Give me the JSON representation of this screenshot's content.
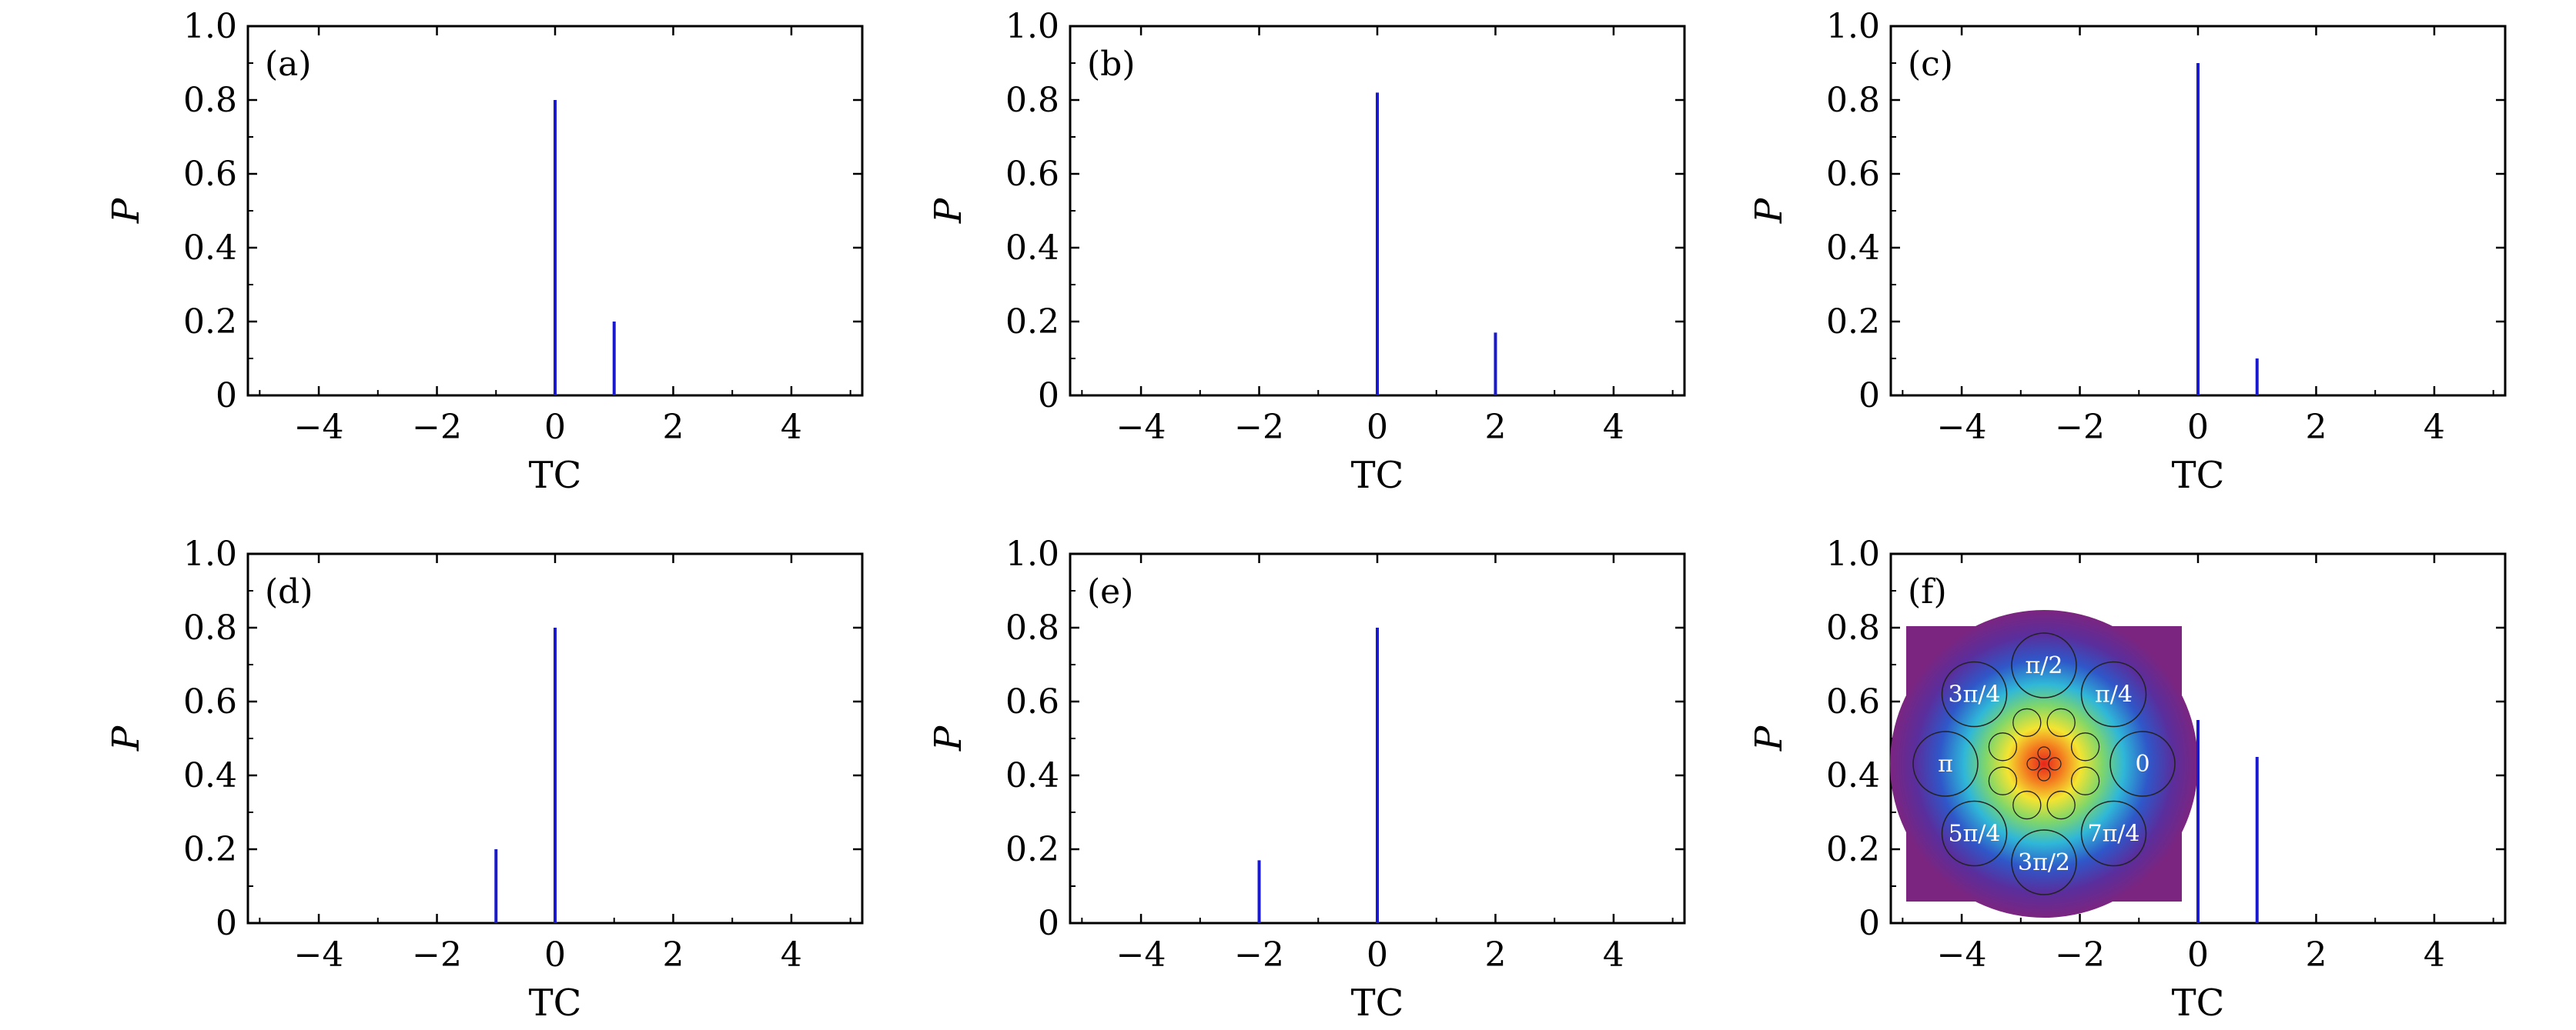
{
  "chart_data": [
    {
      "panel": "(a)",
      "type": "bar",
      "xlabel": "TC",
      "ylabel": "P",
      "xlim": [
        -5.2,
        5.2
      ],
      "ylim": [
        0,
        1.0
      ],
      "xticks": [
        -4,
        -2,
        0,
        2,
        4
      ],
      "xtick_labels": [
        "−4",
        "−2",
        "0",
        "2",
        "4"
      ],
      "yticks": [
        0,
        0.2,
        0.4,
        0.6,
        0.8,
        1.0
      ],
      "ytick_labels": [
        "0",
        "0.2",
        "0.4",
        "0.6",
        "0.8",
        "1.0"
      ],
      "x": [
        0,
        1
      ],
      "values": [
        0.8,
        0.2
      ],
      "color": "#1a1acc"
    },
    {
      "panel": "(b)",
      "type": "bar",
      "xlabel": "TC",
      "ylabel": "P",
      "xlim": [
        -5.2,
        5.2
      ],
      "ylim": [
        0,
        1.0
      ],
      "xticks": [
        -4,
        -2,
        0,
        2,
        4
      ],
      "xtick_labels": [
        "−4",
        "−2",
        "0",
        "2",
        "4"
      ],
      "yticks": [
        0,
        0.2,
        0.4,
        0.6,
        0.8,
        1.0
      ],
      "ytick_labels": [
        "0",
        "0.2",
        "0.4",
        "0.6",
        "0.8",
        "1.0"
      ],
      "x": [
        0,
        2
      ],
      "values": [
        0.82,
        0.17
      ],
      "color": "#1a1acc"
    },
    {
      "panel": "(c)",
      "type": "bar",
      "xlabel": "TC",
      "ylabel": "P",
      "xlim": [
        -5.2,
        5.2
      ],
      "ylim": [
        0,
        1.0
      ],
      "xticks": [
        -4,
        -2,
        0,
        2,
        4
      ],
      "xtick_labels": [
        "−4",
        "−2",
        "0",
        "2",
        "4"
      ],
      "yticks": [
        0,
        0.2,
        0.4,
        0.6,
        0.8,
        1.0
      ],
      "ytick_labels": [
        "0",
        "0.2",
        "0.4",
        "0.6",
        "0.8",
        "1.0"
      ],
      "x": [
        0,
        1
      ],
      "values": [
        0.9,
        0.1
      ],
      "color": "#1a1acc"
    },
    {
      "panel": "(d)",
      "type": "bar",
      "xlabel": "TC",
      "ylabel": "P",
      "xlim": [
        -5.2,
        5.2
      ],
      "ylim": [
        0,
        1.0
      ],
      "xticks": [
        -4,
        -2,
        0,
        2,
        4
      ],
      "xtick_labels": [
        "−4",
        "−2",
        "0",
        "2",
        "4"
      ],
      "yticks": [
        0,
        0.2,
        0.4,
        0.6,
        0.8,
        1.0
      ],
      "ytick_labels": [
        "0",
        "0.2",
        "0.4",
        "0.6",
        "0.8",
        "1.0"
      ],
      "x": [
        -1,
        0
      ],
      "values": [
        0.2,
        0.8
      ],
      "color": "#1a1acc"
    },
    {
      "panel": "(e)",
      "type": "bar",
      "xlabel": "TC",
      "ylabel": "P",
      "xlim": [
        -5.2,
        5.2
      ],
      "ylim": [
        0,
        1.0
      ],
      "xticks": [
        -4,
        -2,
        0,
        2,
        4
      ],
      "xtick_labels": [
        "−4",
        "−2",
        "0",
        "2",
        "4"
      ],
      "yticks": [
        0,
        0.2,
        0.4,
        0.6,
        0.8,
        1.0
      ],
      "ytick_labels": [
        "0",
        "0.2",
        "0.4",
        "0.6",
        "0.8",
        "1.0"
      ],
      "x": [
        -2,
        0
      ],
      "values": [
        0.17,
        0.8
      ],
      "color": "#1a1acc"
    },
    {
      "panel": "(f)",
      "type": "bar",
      "xlabel": "TC",
      "ylabel": "P",
      "xlim": [
        -5.2,
        5.2
      ],
      "ylim": [
        0,
        1.0
      ],
      "xticks": [
        -4,
        -2,
        0,
        2,
        4
      ],
      "xtick_labels": [
        "−4",
        "−2",
        "0",
        "2",
        "4"
      ],
      "yticks": [
        0,
        0.2,
        0.4,
        0.6,
        0.8,
        1.0
      ],
      "ytick_labels": [
        "0",
        "0.2",
        "0.4",
        "0.6",
        "0.8",
        "1.0"
      ],
      "x": [
        0,
        1
      ],
      "values": [
        0.55,
        0.45
      ],
      "color": "#1a1acc",
      "inset": {
        "type": "heatmap",
        "background_color": "#7b2580",
        "phase_labels": [
          "0",
          "π/4",
          "π/2",
          "3π/4",
          "π",
          "5π/4",
          "3π/2",
          "7π/4"
        ]
      }
    }
  ]
}
